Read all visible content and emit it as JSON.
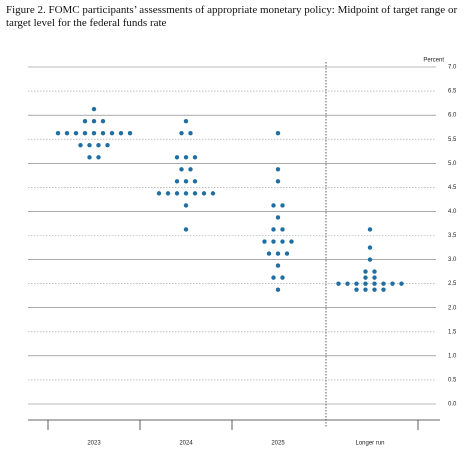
{
  "chart_data": {
    "type": "dot",
    "title": "Figure 2.  FOMC participants’ assessments of appropriate monetary policy:  Midpoint of target range or target level for the federal funds rate",
    "y_axis_label": "Percent",
    "categories": [
      "2023",
      "2024",
      "2025",
      "Longer run"
    ],
    "color": "#1f6fa3",
    "dots": [
      [
        {
          "value": 6.125,
          "count": 1
        },
        {
          "value": 5.875,
          "count": 3
        },
        {
          "value": 5.625,
          "count": 9
        },
        {
          "value": 5.375,
          "count": 4
        },
        {
          "value": 5.125,
          "count": 2
        }
      ],
      [
        {
          "value": 5.875,
          "count": 1
        },
        {
          "value": 5.625,
          "count": 2
        },
        {
          "value": 5.125,
          "count": 3
        },
        {
          "value": 4.875,
          "count": 2
        },
        {
          "value": 4.625,
          "count": 3
        },
        {
          "value": 4.375,
          "count": 7
        },
        {
          "value": 4.125,
          "count": 1
        },
        {
          "value": 3.625,
          "count": 1
        }
      ],
      [
        {
          "value": 5.625,
          "count": 1
        },
        {
          "value": 4.875,
          "count": 1
        },
        {
          "value": 4.625,
          "count": 1
        },
        {
          "value": 4.125,
          "count": 2
        },
        {
          "value": 3.875,
          "count": 1
        },
        {
          "value": 3.625,
          "count": 2
        },
        {
          "value": 3.375,
          "count": 4
        },
        {
          "value": 3.125,
          "count": 3
        },
        {
          "value": 2.875,
          "count": 1
        },
        {
          "value": 2.625,
          "count": 2
        },
        {
          "value": 2.375,
          "count": 1
        }
      ],
      [
        {
          "value": 3.625,
          "count": 1
        },
        {
          "value": 3.25,
          "count": 1
        },
        {
          "value": 3.0,
          "count": 1
        },
        {
          "value": 2.75,
          "count": 2
        },
        {
          "value": 2.625,
          "count": 2
        },
        {
          "value": 2.5,
          "count": 8
        },
        {
          "value": 2.375,
          "count": 4
        }
      ]
    ],
    "ylim": [
      0,
      7
    ],
    "yticks": [
      {
        "value": 0,
        "label": "0.0"
      },
      {
        "value": 0.5,
        "label": "0.5"
      },
      {
        "value": 1,
        "label": "1.0"
      },
      {
        "value": 1.5,
        "label": "1.5"
      },
      {
        "value": 2,
        "label": "2.0"
      },
      {
        "value": 2.5,
        "label": "2.5"
      },
      {
        "value": 3,
        "label": "3.0"
      },
      {
        "value": 3.5,
        "label": "3.5"
      },
      {
        "value": 4,
        "label": "4.0"
      },
      {
        "value": 4.5,
        "label": "4.5"
      },
      {
        "value": 5,
        "label": "5.0"
      },
      {
        "value": 5.5,
        "label": "5.5"
      },
      {
        "value": 6,
        "label": "6.0"
      },
      {
        "value": 6.5,
        "label": "6.5"
      },
      {
        "value": 7,
        "label": "7.0"
      }
    ],
    "grid": true
  }
}
